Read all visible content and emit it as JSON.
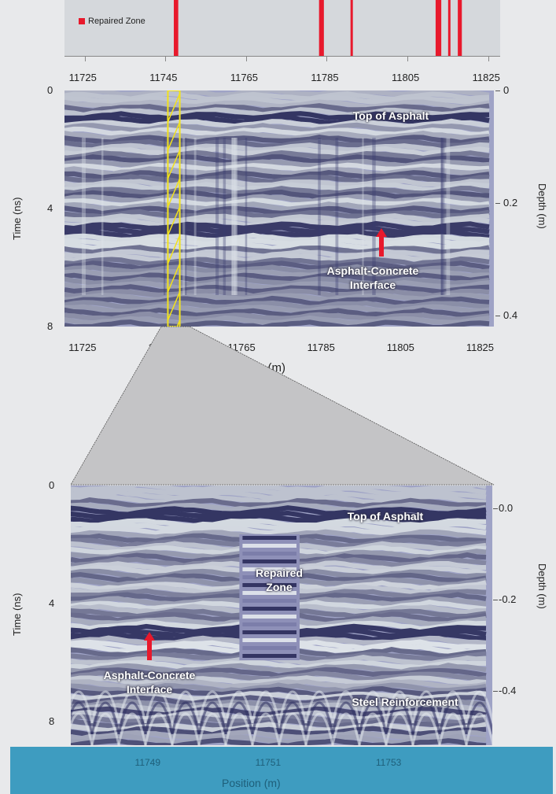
{
  "chart_data": [
    {
      "type": "bar",
      "panel": "repaired-zone-strip",
      "legend": {
        "label": "Repaired Zone",
        "color": "#e8192c"
      },
      "xlim": [
        11720,
        11828
      ],
      "x_ticks": [
        "11725",
        "11745",
        "11765",
        "11785",
        "11805",
        "11825"
      ],
      "repaired_zones": [
        [
          11747.1,
          11748.2
        ],
        [
          11783.1,
          11784.3
        ],
        [
          11790.9,
          11791.4
        ],
        [
          11812.0,
          11813.4
        ],
        [
          11815.1,
          11815.6
        ],
        [
          11817.5,
          11818.5
        ]
      ]
    },
    {
      "type": "heatmap",
      "panel": "gpr-overview",
      "xlabel": "Position (m)",
      "ylabel": "Time (ns)",
      "y2label": "Depth (m)",
      "xlim": [
        11720,
        11828
      ],
      "ylim": [
        0,
        8
      ],
      "y2lim": [
        0,
        0.42
      ],
      "x_ticks": [
        "11725",
        "11745",
        "11765",
        "11785",
        "11805",
        "11825"
      ],
      "y_ticks": [
        "0",
        "4",
        "8"
      ],
      "y2_ticks": [
        "0",
        "0.2",
        "0.4"
      ],
      "highlight_range": [
        11746,
        11749
      ],
      "annotations": [
        "Top of Asphalt",
        "Asphalt-Concrete Interface"
      ]
    },
    {
      "type": "heatmap",
      "panel": "gpr-zoom",
      "xlabel": "Position (m)",
      "ylabel": "Time (ns)",
      "y2label": "Depth (m)",
      "xlim": [
        11747.7,
        11754.7
      ],
      "ylim": [
        0,
        8.8
      ],
      "y2lim": [
        -0.05,
        0.52
      ],
      "x_ticks": [
        "11749",
        "11751",
        "11753"
      ],
      "y_ticks": [
        "0",
        "4",
        "8"
      ],
      "y2_ticks": [
        "0.0",
        "-0.2",
        "-0.4"
      ],
      "annotations": [
        "Top of Asphalt",
        "Repaired Zone",
        "Asphalt-Concrete Interface",
        "Steel Reinforcement"
      ]
    }
  ],
  "strip": {
    "legend_label": "Repaired Zone",
    "ticks": [
      "11725",
      "11745",
      "11765",
      "11785",
      "11805",
      "11825"
    ]
  },
  "overview": {
    "x_ticks": [
      "11725",
      "11745",
      "11765",
      "11785",
      "11805",
      "11825"
    ],
    "y_ticks": [
      "0",
      "4",
      "8"
    ],
    "y2_ticks": [
      "0",
      "0.2",
      "0.4"
    ],
    "xlabel": "Position (m)",
    "ylabel": "Time (ns)",
    "y2label": "Depth (m)",
    "anno_top": "Top of Asphalt",
    "anno_interface": "Asphalt-Concrete Interface"
  },
  "zoom": {
    "x_ticks": [
      "11749",
      "11751",
      "11753"
    ],
    "y_ticks": [
      "0",
      "4",
      "8"
    ],
    "y2_ticks": [
      "0.0",
      "-0.2",
      "-0.4"
    ],
    "xlabel": "Position (m)",
    "ylabel": "Time (ns)",
    "y2label": "Depth (m)",
    "anno_top": "Top of Asphalt",
    "anno_repaired": "Repaired Zone",
    "anno_interface": "Asphalt-Concrete Interface",
    "anno_steel": "Steel Reinforcement"
  },
  "colors": {
    "repair": "#e8192c",
    "highlight": "#f2e21c",
    "arrow": "#e8192c",
    "gpr_dark": "#2b2c5c",
    "gpr_light": "#e6ecef",
    "footer": "#3e9cc0"
  }
}
